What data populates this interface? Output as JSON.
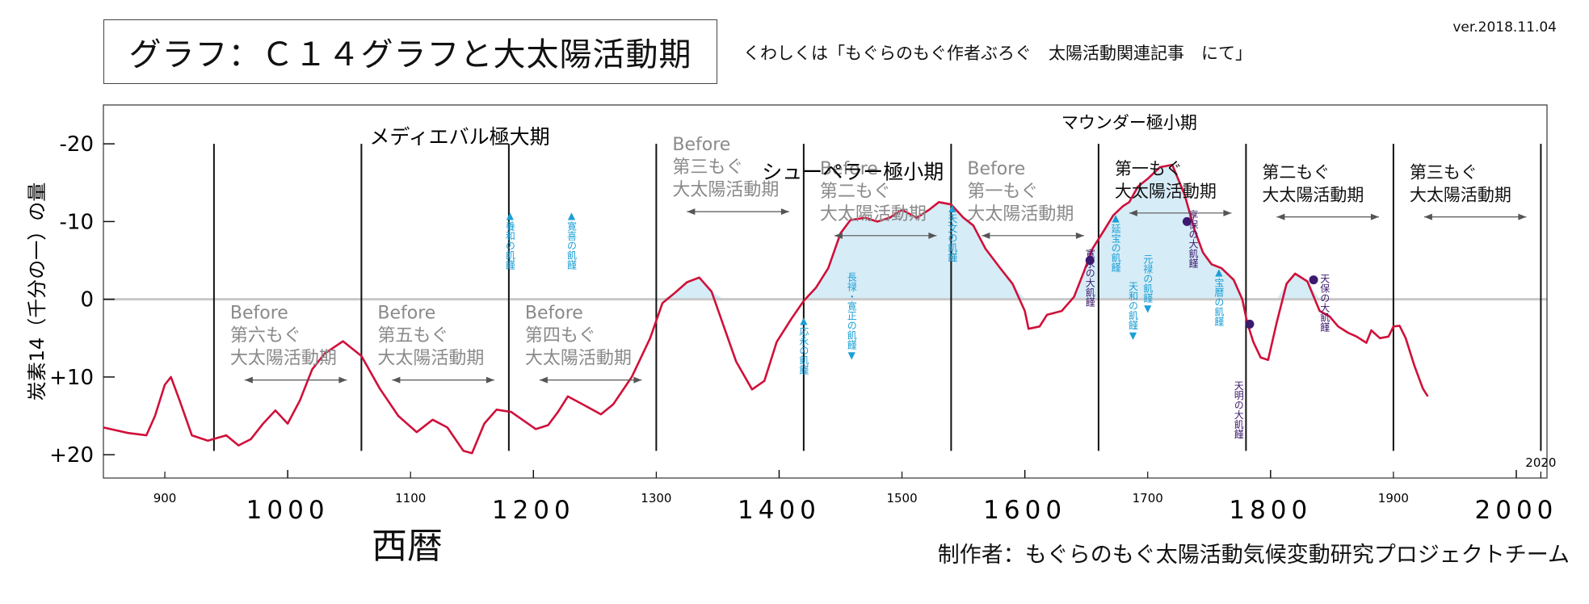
{
  "header": {
    "title": "グラフ：Ｃ１４グラフと大太陽活動期",
    "subtitle": "くわしくは「もぐらのもぐ作者ぶろぐ　太陽活動関連記事　にて」",
    "version": "ver.2018.11.04"
  },
  "footer": {
    "xlabel": "西暦",
    "credit": "制作者：もぐらのもぐ太陽活動気候変動研究プロジェクトチーム"
  },
  "colors": {
    "curve": "#d0103a",
    "fill": "#d6ecf7",
    "baseline": "#c8c8c8",
    "blue_note": "#1a9fd6",
    "purple_note": "#3d1a6e",
    "period_text": "#8a8a8a"
  },
  "chart_data": {
    "type": "line",
    "title": "グラフ：Ｃ１４グラフと大太陽活動期",
    "xlabel": "西暦",
    "ylabel": "炭素14（千分の一）の量",
    "xlim": [
      850,
      2025
    ],
    "ylim": [
      -25,
      23
    ],
    "y_inverted": true,
    "y_ticks": [
      {
        "value": -20,
        "label": "-20"
      },
      {
        "value": -10,
        "label": "-10"
      },
      {
        "value": 0,
        "label": "0"
      },
      {
        "value": 10,
        "label": "+10"
      },
      {
        "value": 20,
        "label": "+20"
      }
    ],
    "x_minor_ticks": [
      900,
      1100,
      1300,
      1500,
      1700,
      1900,
      2020
    ],
    "x_major_ticks": [
      1000,
      1200,
      1400,
      1600,
      1800,
      2000
    ],
    "period_boundaries": [
      940,
      1060,
      1180,
      1300,
      1420,
      1540,
      1660,
      1780,
      1900,
      2020
    ],
    "series": [
      {
        "name": "C14",
        "points": [
          [
            850,
            16.5
          ],
          [
            870,
            17.2
          ],
          [
            885,
            17.5
          ],
          [
            892,
            15
          ],
          [
            900,
            11
          ],
          [
            905,
            10
          ],
          [
            912,
            13
          ],
          [
            922,
            17.5
          ],
          [
            935,
            18.2
          ],
          [
            950,
            17.5
          ],
          [
            960,
            18.8
          ],
          [
            970,
            18
          ],
          [
            980,
            16
          ],
          [
            990,
            14.3
          ],
          [
            1000,
            16
          ],
          [
            1010,
            13
          ],
          [
            1020,
            9
          ],
          [
            1030,
            7
          ],
          [
            1045,
            5.4
          ],
          [
            1060,
            7.3
          ],
          [
            1075,
            11.5
          ],
          [
            1090,
            15
          ],
          [
            1105,
            17.1
          ],
          [
            1118,
            15.5
          ],
          [
            1130,
            16.5
          ],
          [
            1143,
            19.5
          ],
          [
            1150,
            19.8
          ],
          [
            1160,
            16
          ],
          [
            1170,
            14.2
          ],
          [
            1182,
            14.5
          ],
          [
            1192,
            15.6
          ],
          [
            1202,
            16.7
          ],
          [
            1212,
            16.2
          ],
          [
            1220,
            14.5
          ],
          [
            1228,
            12.5
          ],
          [
            1240,
            13.5
          ],
          [
            1255,
            14.8
          ],
          [
            1265,
            13.5
          ],
          [
            1280,
            10
          ],
          [
            1295,
            5
          ],
          [
            1305,
            0.5
          ],
          [
            1315,
            -0.8
          ],
          [
            1325,
            -2.2
          ],
          [
            1335,
            -2.8
          ],
          [
            1345,
            -1
          ],
          [
            1355,
            3.5
          ],
          [
            1365,
            8
          ],
          [
            1378,
            11.6
          ],
          [
            1388,
            10.5
          ],
          [
            1398,
            5.5
          ],
          [
            1410,
            2.5
          ],
          [
            1420,
            0.2
          ],
          [
            1430,
            -1.5
          ],
          [
            1440,
            -4
          ],
          [
            1450,
            -8.5
          ],
          [
            1458,
            -10.2
          ],
          [
            1470,
            -10.5
          ],
          [
            1480,
            -10
          ],
          [
            1490,
            -10.5
          ],
          [
            1500,
            -11.5
          ],
          [
            1512,
            -10.5
          ],
          [
            1522,
            -11.5
          ],
          [
            1530,
            -12.5
          ],
          [
            1540,
            -12.2
          ],
          [
            1550,
            -10.5
          ],
          [
            1558,
            -9.5
          ],
          [
            1568,
            -6.5
          ],
          [
            1580,
            -4
          ],
          [
            1590,
            -2
          ],
          [
            1600,
            1.5
          ],
          [
            1603,
            3.8
          ],
          [
            1612,
            3.5
          ],
          [
            1618,
            2
          ],
          [
            1630,
            1.5
          ],
          [
            1640,
            -0.3
          ],
          [
            1648,
            -3.5
          ],
          [
            1655,
            -6.5
          ],
          [
            1665,
            -9
          ],
          [
            1672,
            -10.8
          ],
          [
            1680,
            -12
          ],
          [
            1685,
            -12.5
          ],
          [
            1692,
            -14.5
          ],
          [
            1700,
            -15.5
          ],
          [
            1710,
            -17
          ],
          [
            1720,
            -17.3
          ],
          [
            1730,
            -13.5
          ],
          [
            1738,
            -9
          ],
          [
            1745,
            -6
          ],
          [
            1752,
            -4.5
          ],
          [
            1760,
            -4
          ],
          [
            1770,
            -2.5
          ],
          [
            1777,
            0
          ],
          [
            1781,
            3
          ],
          [
            1786,
            5.5
          ],
          [
            1792,
            7.5
          ],
          [
            1798,
            7.8
          ],
          [
            1805,
            3
          ],
          [
            1813,
            -2
          ],
          [
            1820,
            -3.3
          ],
          [
            1830,
            -2.3
          ],
          [
            1840,
            1.5
          ],
          [
            1848,
            2.2
          ],
          [
            1855,
            3.5
          ],
          [
            1863,
            4.3
          ],
          [
            1870,
            4.8
          ],
          [
            1878,
            5.6
          ],
          [
            1882,
            4
          ],
          [
            1889,
            5
          ],
          [
            1896,
            4.8
          ],
          [
            1900,
            3.5
          ],
          [
            1905,
            3.4
          ],
          [
            1910,
            5
          ],
          [
            1917,
            8.5
          ],
          [
            1924,
            11.5
          ],
          [
            1928,
            12.5
          ]
        ]
      }
    ],
    "markers": [
      {
        "x": 1653,
        "y": -5
      },
      {
        "x": 1732,
        "y": -10
      },
      {
        "x": 1783,
        "y": 3.2
      },
      {
        "x": 1835,
        "y": -2.5
      }
    ],
    "annotations": {
      "medieval_max": "メディエバル極大期",
      "sporer_min": "シューペラー極小期",
      "maunder_min": "マウンダー極小期",
      "periods": [
        {
          "lines": [
            "Before",
            "第六もぐ",
            "大太陽活動期"
          ],
          "from": 940,
          "to": 1060,
          "tone": "gray"
        },
        {
          "lines": [
            "Before",
            "第五もぐ",
            "大太陽活動期"
          ],
          "from": 1060,
          "to": 1180,
          "tone": "gray"
        },
        {
          "lines": [
            "Before",
            "第四もぐ",
            "大太陽活動期"
          ],
          "from": 1180,
          "to": 1300,
          "tone": "gray"
        },
        {
          "lines": [
            "Before",
            "第三もぐ",
            "大太陽活動期"
          ],
          "from": 1300,
          "to": 1420,
          "tone": "gray"
        },
        {
          "lines": [
            "Before",
            "第二もぐ",
            "大太陽活動期"
          ],
          "from": 1420,
          "to": 1540,
          "tone": "gray"
        },
        {
          "lines": [
            "Before",
            "第一もぐ",
            "大太陽活動期"
          ],
          "from": 1540,
          "to": 1660,
          "tone": "gray"
        },
        {
          "lines": [
            "第一もぐ",
            "大太陽活動期"
          ],
          "from": 1660,
          "to": 1780,
          "tone": "dark"
        },
        {
          "lines": [
            "第二もぐ",
            "大太陽活動期"
          ],
          "from": 1780,
          "to": 1900,
          "tone": "dark"
        },
        {
          "lines": [
            "第三もぐ",
            "大太陽活動期"
          ],
          "from": 1900,
          "to": 2020,
          "tone": "dark"
        }
      ],
      "famines": [
        {
          "text": "▲養和の飢饉",
          "x": 1181,
          "y": -11.5,
          "color": "blue"
        },
        {
          "text": "▲寛喜の飢饉",
          "x": 1231,
          "y": -11.5,
          "color": "blue"
        },
        {
          "text": "▲応永の飢饉",
          "x": 1420,
          "y": 2,
          "color": "blue"
        },
        {
          "text": "長禄・寛正の飢饉▼",
          "x": 1459,
          "y": -3.5,
          "color": "blue"
        },
        {
          "text": "▲天文の飢饉",
          "x": 1541,
          "y": -12.5,
          "color": "blue"
        },
        {
          "text": "寛永の大飢饉",
          "x": 1653,
          "y": -6.5,
          "color": "purple"
        },
        {
          "text": "▲延宝の飢饉",
          "x": 1674,
          "y": -11.2,
          "color": "blue"
        },
        {
          "text": "天和の飢饉▼",
          "x": 1688,
          "y": -2.3,
          "color": "blue"
        },
        {
          "text": "元禄の飢饉▼",
          "x": 1700,
          "y": -5.8,
          "color": "blue"
        },
        {
          "text": "享保の大飢饉",
          "x": 1737,
          "y": -11.5,
          "color": "purple"
        },
        {
          "text": "▲宝暦の飢饉",
          "x": 1758,
          "y": -4.2,
          "color": "blue"
        },
        {
          "text": "天明の大飢饉",
          "x": 1774,
          "y": 10.5,
          "color": "purple"
        },
        {
          "text": "天保の大飢饉",
          "x": 1844,
          "y": -3.3,
          "color": "purple"
        }
      ]
    }
  }
}
